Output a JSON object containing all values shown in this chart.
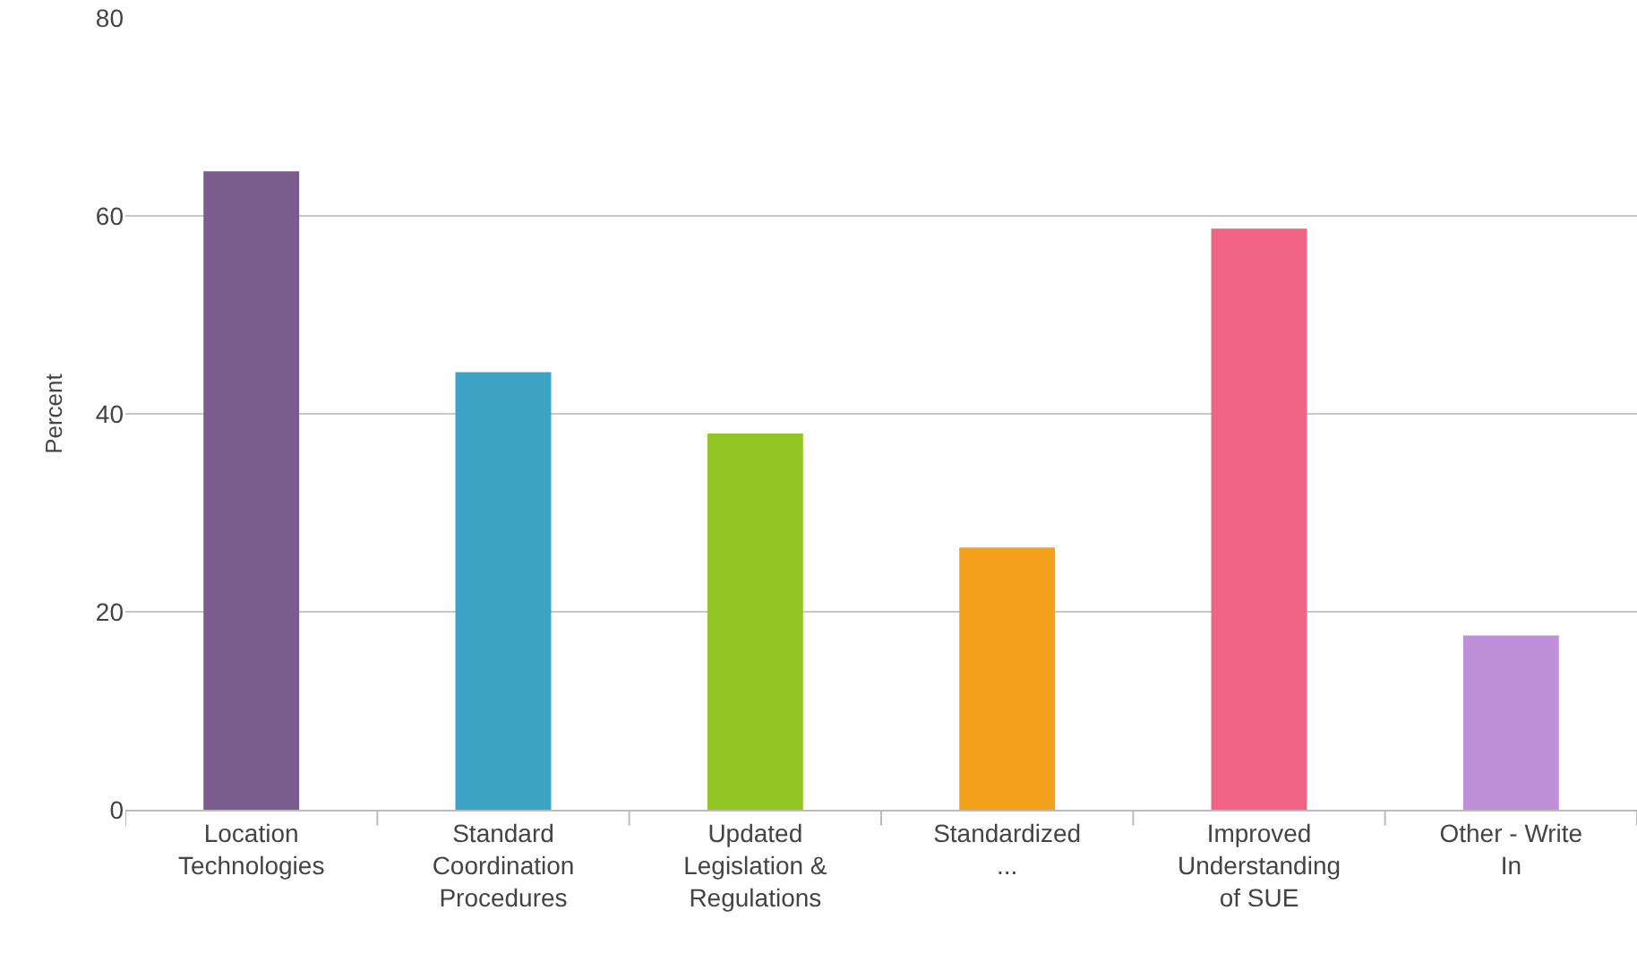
{
  "chart_data": {
    "type": "bar",
    "ylabel": "Percent",
    "categories": [
      "Location Technologies",
      "Standard Coordination Procedures",
      "Updated Legislation & Regulations",
      "Standardized ...",
      "Improved Understanding of SUE",
      "Other - Write In"
    ],
    "values": [
      64.5,
      44.2,
      38,
      26.5,
      58.7,
      17.6
    ],
    "colors": [
      "#7b5c8e",
      "#3ba3c3",
      "#93c425",
      "#f4a11b",
      "#f06585",
      "#bf8fd8"
    ],
    "ylim": [
      0,
      80
    ],
    "yticks": [
      0,
      20,
      40,
      60,
      80
    ],
    "grid": "y",
    "legend": false
  }
}
